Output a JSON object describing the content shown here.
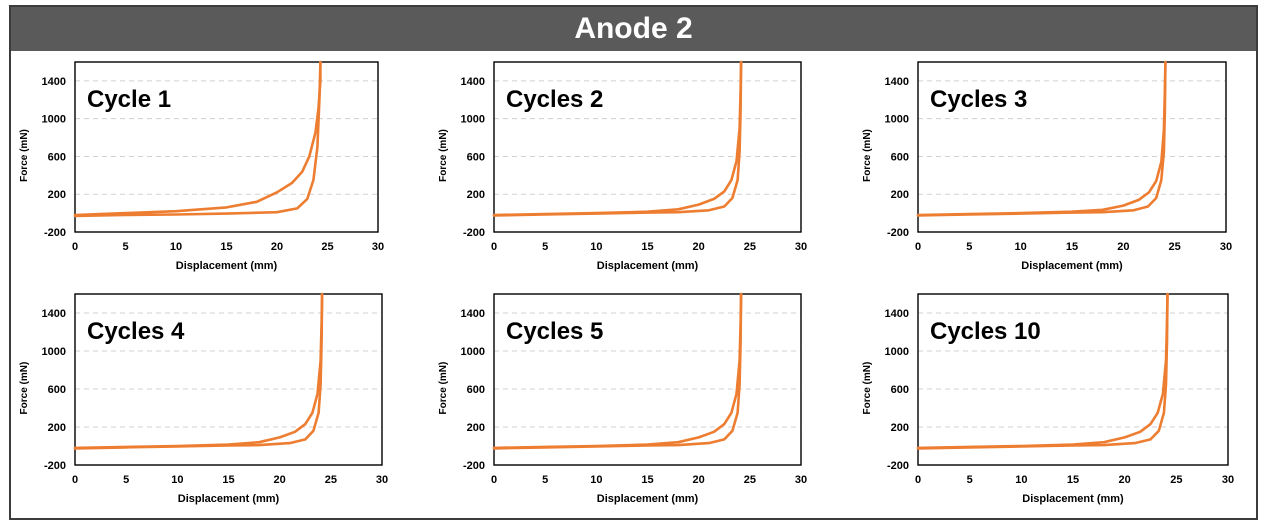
{
  "banner_title": "Anode 2",
  "colors": {
    "curve": "#ed7d31",
    "grid": "#d0d0d0",
    "axis": "#000000",
    "banner_bg": "#5a5a5a",
    "banner_text": "#ffffff"
  },
  "chart_data": [
    {
      "type": "line",
      "label": "Cycle 1",
      "xlabel": "Displacement (mm)",
      "ylabel": "Force (mN)",
      "xlim": [
        0,
        30
      ],
      "ylim": [
        -200,
        1600
      ],
      "xticks": [
        0,
        5,
        10,
        15,
        20,
        25,
        30
      ],
      "yticks": [
        -200,
        200,
        600,
        1000,
        1400
      ],
      "grid": "horizontal dashed",
      "series": [
        {
          "x": [
            0,
            5,
            10,
            15,
            18,
            20,
            21.5,
            22.5,
            23.2,
            23.8,
            24.1,
            24.3,
            24.3
          ],
          "y": [
            -20,
            0,
            20,
            60,
            120,
            220,
            320,
            440,
            600,
            850,
            1100,
            1400,
            1600
          ]
        },
        {
          "x": [
            24.3,
            24.2,
            24.0,
            23.6,
            23.0,
            22.0,
            20.0,
            15.0,
            10.0,
            5.0,
            0
          ],
          "y": [
            1600,
            1200,
            700,
            350,
            150,
            50,
            10,
            -5,
            -15,
            -20,
            -30
          ]
        }
      ]
    },
    {
      "type": "line",
      "label": "Cycles 2",
      "xlabel": "Displacement (mm)",
      "ylabel": "Force (mN)",
      "xlim": [
        0,
        30
      ],
      "ylim": [
        -200,
        1600
      ],
      "xticks": [
        0,
        5,
        10,
        15,
        20,
        25,
        30
      ],
      "yticks": [
        -200,
        200,
        600,
        1000,
        1400
      ],
      "grid": "horizontal dashed",
      "series": [
        {
          "x": [
            0,
            5,
            10,
            15,
            18,
            20,
            21.5,
            22.5,
            23.2,
            23.7,
            24.0,
            24.1,
            24.15
          ],
          "y": [
            -20,
            -10,
            0,
            15,
            40,
            90,
            150,
            230,
            350,
            550,
            900,
            1300,
            1600
          ]
        },
        {
          "x": [
            24.15,
            24.1,
            24.0,
            23.8,
            23.3,
            22.5,
            21.0,
            18.0,
            15.0,
            10.0,
            5.0,
            0
          ],
          "y": [
            1600,
            1100,
            650,
            350,
            160,
            70,
            30,
            10,
            5,
            -5,
            -15,
            -25
          ]
        }
      ]
    },
    {
      "type": "line",
      "label": "Cycles 3",
      "xlabel": "Displacement (mm)",
      "ylabel": "Force (mN)",
      "xlim": [
        0,
        30
      ],
      "ylim": [
        -200,
        1600
      ],
      "xticks": [
        0,
        5,
        10,
        15,
        20,
        25,
        30
      ],
      "yticks": [
        -200,
        200,
        600,
        1000,
        1400
      ],
      "grid": "horizontal dashed",
      "series": [
        {
          "x": [
            0,
            5,
            10,
            15,
            18,
            20,
            21.5,
            22.5,
            23.2,
            23.7,
            23.95,
            24.05,
            24.1
          ],
          "y": [
            -20,
            -10,
            0,
            15,
            35,
            80,
            140,
            220,
            340,
            540,
            880,
            1300,
            1600
          ]
        },
        {
          "x": [
            24.1,
            24.05,
            23.95,
            23.7,
            23.2,
            22.4,
            21.0,
            18.0,
            15.0,
            10.0,
            5.0,
            0
          ],
          "y": [
            1600,
            1100,
            650,
            350,
            160,
            70,
            30,
            10,
            5,
            -5,
            -15,
            -25
          ]
        }
      ]
    },
    {
      "type": "line",
      "label": "Cycles 4",
      "xlabel": "Displacement (mm)",
      "ylabel": "Force (mN)",
      "xlim": [
        0,
        30
      ],
      "ylim": [
        -200,
        1600
      ],
      "xticks": [
        0,
        5,
        10,
        15,
        20,
        25,
        30
      ],
      "yticks": [
        -200,
        200,
        600,
        1000,
        1400
      ],
      "grid": "horizontal dashed",
      "series": [
        {
          "x": [
            0,
            5,
            10,
            15,
            18,
            20,
            21.5,
            22.5,
            23.2,
            23.7,
            24.0,
            24.1,
            24.15
          ],
          "y": [
            -20,
            -10,
            0,
            15,
            40,
            90,
            150,
            230,
            350,
            550,
            900,
            1300,
            1600
          ]
        },
        {
          "x": [
            24.15,
            24.1,
            24.0,
            23.8,
            23.3,
            22.5,
            21.0,
            18.0,
            15.0,
            10.0,
            5.0,
            0
          ],
          "y": [
            1600,
            1100,
            650,
            350,
            160,
            70,
            30,
            10,
            5,
            -5,
            -15,
            -25
          ]
        }
      ]
    },
    {
      "type": "line",
      "label": "Cycles 5",
      "xlabel": "Displacement (mm)",
      "ylabel": "Force (mN)",
      "xlim": [
        0,
        30
      ],
      "ylim": [
        -200,
        1600
      ],
      "xticks": [
        0,
        5,
        10,
        15,
        20,
        25,
        30
      ],
      "yticks": [
        -200,
        200,
        600,
        1000,
        1400
      ],
      "grid": "horizontal dashed",
      "series": [
        {
          "x": [
            0,
            5,
            10,
            15,
            18,
            20,
            21.5,
            22.5,
            23.2,
            23.7,
            24.0,
            24.1,
            24.15
          ],
          "y": [
            -20,
            -10,
            0,
            15,
            40,
            90,
            150,
            230,
            350,
            550,
            900,
            1300,
            1600
          ]
        },
        {
          "x": [
            24.15,
            24.1,
            24.0,
            23.8,
            23.3,
            22.5,
            21.0,
            18.0,
            15.0,
            10.0,
            5.0,
            0
          ],
          "y": [
            1600,
            1100,
            650,
            350,
            160,
            70,
            30,
            10,
            5,
            -5,
            -15,
            -25
          ]
        }
      ]
    },
    {
      "type": "line",
      "label": "Cycles 10",
      "xlabel": "Displacement (mm)",
      "ylabel": "Force (mN)",
      "xlim": [
        0,
        30
      ],
      "ylim": [
        -200,
        1600
      ],
      "xticks": [
        0,
        5,
        10,
        15,
        20,
        25,
        30
      ],
      "yticks": [
        -200,
        200,
        600,
        1000,
        1400
      ],
      "grid": "horizontal dashed",
      "series": [
        {
          "x": [
            0,
            5,
            10,
            15,
            18,
            20,
            21.5,
            22.5,
            23.2,
            23.7,
            24.0,
            24.1,
            24.15
          ],
          "y": [
            -20,
            -10,
            0,
            15,
            40,
            90,
            150,
            230,
            350,
            550,
            900,
            1300,
            1600
          ]
        },
        {
          "x": [
            24.15,
            24.1,
            24.0,
            23.8,
            23.3,
            22.5,
            21.0,
            18.0,
            15.0,
            10.0,
            5.0,
            0
          ],
          "y": [
            1600,
            1100,
            650,
            350,
            160,
            70,
            30,
            10,
            5,
            -5,
            -15,
            -25
          ]
        }
      ]
    }
  ]
}
